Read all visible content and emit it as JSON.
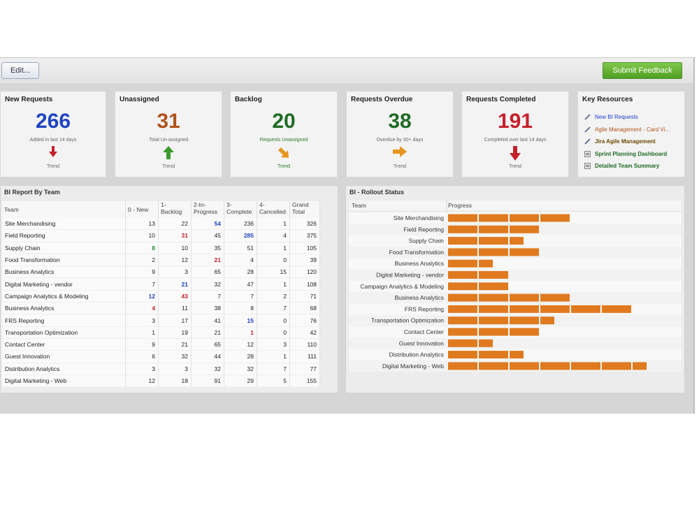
{
  "toolbar": {
    "edit_label": "Edit...",
    "submit_label": "Submit Feedback"
  },
  "cards": [
    {
      "title": "New Requests",
      "value": "266",
      "sub": "Added in last 14 days",
      "trend": "Trend",
      "color": "#1f45c2",
      "arrow": "down-icon",
      "arrow_color": "#c6202a"
    },
    {
      "title": "Unassigned",
      "value": "31",
      "sub": "Total Un-assigned",
      "trend": "Trend",
      "color": "#b0521b",
      "arrow": "up-icon",
      "arrow_color": "#3c9a2d"
    },
    {
      "title": "Backlog",
      "value": "20",
      "sub": "Requests Unassigned",
      "trend": "Trend",
      "color": "#1f6b24",
      "arrow": "down-right-icon",
      "arrow_color": "#e69520"
    },
    {
      "title": "Requests Overdue",
      "value": "38",
      "sub": "Overdue by 30+ days",
      "trend": "Trend",
      "color": "#1f6b24",
      "arrow": "right-icon",
      "arrow_color": "#e69520"
    },
    {
      "title": "Requests Completed",
      "value": "191",
      "sub": "Completed over last 14 days",
      "trend": "Trend",
      "color": "#c6202a",
      "arrow": "down-icon",
      "arrow_color": "#c6202a"
    }
  ],
  "resources": {
    "title": "Key Resources",
    "items": [
      {
        "label": "New BI Requests",
        "icon": "link-icon",
        "color": "#1d3fc9",
        "bold": false
      },
      {
        "label": "Agile Management - Card Vi...",
        "icon": "link-icon",
        "color": "#b0521b",
        "bold": false
      },
      {
        "label": "Jira Agile Management",
        "icon": "link-icon",
        "color": "#6b4a00",
        "bold": true
      },
      {
        "label": "Sprint Planning Dashboard",
        "icon": "report-icon",
        "color": "#1f6b24",
        "bold": true
      },
      {
        "label": "Detailed Team Summary",
        "icon": "report-icon",
        "color": "#1f6b24",
        "bold": true
      }
    ]
  },
  "bi_report": {
    "title": "BI Report By Team",
    "headers": [
      "Team",
      "0 - New",
      "1-\nBacklog",
      "2-In-\nProgress",
      "3-\nComplete",
      "4-\nCancelled",
      "Grand\nTotal"
    ],
    "rows": [
      {
        "cells": [
          "Site Merchandising",
          "13",
          "22",
          "54",
          "236",
          "1",
          "326"
        ],
        "styles": [
          "",
          "",
          "",
          "blue",
          "",
          "",
          ""
        ]
      },
      {
        "cells": [
          "Field Reporting",
          "10",
          "31",
          "45",
          "285",
          "4",
          "375"
        ],
        "styles": [
          "",
          "",
          "red",
          "",
          "blue",
          "",
          ""
        ]
      },
      {
        "cells": [
          "Supply Chain",
          "8",
          "10",
          "35",
          "51",
          "1",
          "105"
        ],
        "styles": [
          "",
          "green",
          "",
          "",
          "",
          "",
          ""
        ]
      },
      {
        "cells": [
          "Food Transformation",
          "2",
          "12",
          "21",
          "4",
          "0",
          "39"
        ],
        "styles": [
          "",
          "",
          "",
          "red",
          "",
          "",
          ""
        ]
      },
      {
        "cells": [
          "Business Analytics",
          "9",
          "3",
          "65",
          "28",
          "15",
          "120"
        ],
        "styles": [
          "",
          "",
          "",
          "",
          "",
          "",
          ""
        ]
      },
      {
        "cells": [
          "Digital Marketing - vendor",
          "7",
          "21",
          "32",
          "47",
          "1",
          "108"
        ],
        "styles": [
          "",
          "",
          "blue",
          "",
          "",
          "",
          ""
        ]
      },
      {
        "cells": [
          "Campaign Analytics & Modeling",
          "12",
          "43",
          "7",
          "7",
          "2",
          "71"
        ],
        "styles": [
          "",
          "blue",
          "red",
          "",
          "",
          "",
          ""
        ]
      },
      {
        "cells": [
          "Business Analytics",
          "4",
          "11",
          "38",
          "8",
          "7",
          "68"
        ],
        "styles": [
          "",
          "red",
          "",
          "",
          "",
          "",
          ""
        ]
      },
      {
        "cells": [
          "FRS Reporting",
          "3",
          "17",
          "41",
          "15",
          "0",
          "76"
        ],
        "styles": [
          "",
          "",
          "",
          "",
          "blue",
          "",
          ""
        ]
      },
      {
        "cells": [
          "Transportation Optimization",
          "1",
          "19",
          "21",
          "1",
          "0",
          "42"
        ],
        "styles": [
          "",
          "",
          "",
          "",
          "red",
          "",
          ""
        ]
      },
      {
        "cells": [
          "Contact Center",
          "9",
          "21",
          "65",
          "12",
          "3",
          "110"
        ],
        "styles": [
          "",
          "",
          "",
          "",
          "",
          "",
          ""
        ]
      },
      {
        "cells": [
          "Guest Innovation",
          "6",
          "32",
          "44",
          "28",
          "1",
          "111"
        ],
        "styles": [
          "",
          "",
          "",
          "",
          "",
          "",
          ""
        ]
      },
      {
        "cells": [
          "Distribution Analytics",
          "3",
          "3",
          "32",
          "32",
          "7",
          "77"
        ],
        "styles": [
          "",
          "",
          "",
          "",
          "",
          "",
          ""
        ]
      },
      {
        "cells": [
          "Digital Marketing - Web",
          "12",
          "18",
          "91",
          "29",
          "5",
          "155"
        ],
        "styles": [
          "",
          "",
          "",
          "",
          "",
          "",
          ""
        ]
      }
    ]
  },
  "rollout": {
    "title": "BI - Rollout Status",
    "team_header": "Team",
    "progress_header": "Progress",
    "bar_color": "#e07a1f",
    "max_segments": 8,
    "rows": [
      {
        "team": "Site Merchandising",
        "segments": 4
      },
      {
        "team": "Field Reporting",
        "segments": 3
      },
      {
        "team": "Supply Chain",
        "segments": 2.5
      },
      {
        "team": "Food Transformation",
        "segments": 3
      },
      {
        "team": "Business Analytics",
        "segments": 1.5
      },
      {
        "team": "Digital Marketing - vendor",
        "segments": 2
      },
      {
        "team": "Campaign Analytics & Modeling",
        "segments": 2
      },
      {
        "team": "Business Analytics",
        "segments": 4
      },
      {
        "team": "FRS Reporting",
        "segments": 6
      },
      {
        "team": "Transportation Optimization",
        "segments": 3.5
      },
      {
        "team": "Contact Center",
        "segments": 3
      },
      {
        "team": "Guest Innovation",
        "segments": 1.5
      },
      {
        "team": "Distribution Analytics",
        "segments": 2.5
      },
      {
        "team": "Digital Marketing - Web",
        "segments": 6.5
      }
    ]
  }
}
